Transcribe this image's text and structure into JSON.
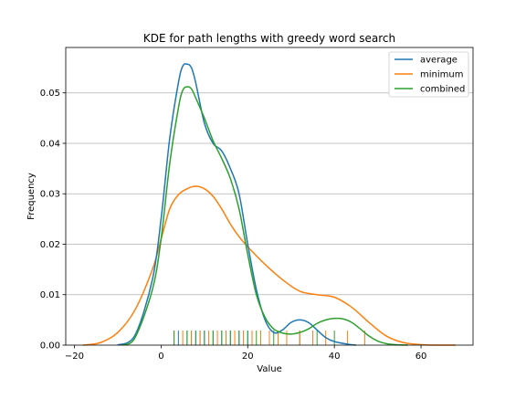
{
  "chart_data": {
    "type": "line",
    "title": "KDE for path lengths with greedy word search",
    "xlabel": "Value",
    "ylabel": "Frequency",
    "xlim": [
      -22,
      72
    ],
    "ylim": [
      0,
      0.059
    ],
    "xticks": [
      -20,
      0,
      20,
      40,
      60
    ],
    "yticks": [
      0.0,
      0.01,
      0.02,
      0.03,
      0.04,
      0.05
    ],
    "ytick_labels": [
      "0.00",
      "0.01",
      "0.02",
      "0.03",
      "0.04",
      "0.05"
    ],
    "grid": "horizontal",
    "legend_position": "top-right",
    "series": [
      {
        "name": "average",
        "color": "#1f77b4",
        "x": [
          -10,
          -6,
          -2,
          0,
          2,
          4,
          5,
          6,
          7,
          8,
          10,
          12,
          14,
          16,
          18,
          20,
          22,
          24,
          26,
          28,
          30,
          32,
          34,
          36,
          38,
          40,
          43,
          45
        ],
        "y": [
          0.0,
          0.002,
          0.013,
          0.025,
          0.041,
          0.052,
          0.0553,
          0.0557,
          0.055,
          0.052,
          0.044,
          0.04,
          0.0385,
          0.035,
          0.03,
          0.02,
          0.011,
          0.005,
          0.0025,
          0.003,
          0.0045,
          0.005,
          0.0045,
          0.003,
          0.0015,
          0.0007,
          0.0002,
          0.0
        ]
      },
      {
        "name": "minimum",
        "color": "#ff7f0e",
        "x": [
          -18,
          -14,
          -10,
          -6,
          -2,
          0,
          2,
          4,
          6,
          8,
          10,
          12,
          14,
          16,
          18,
          20,
          24,
          28,
          32,
          36,
          40,
          44,
          48,
          52,
          56,
          60,
          64,
          68
        ],
        "y": [
          0.0,
          0.0005,
          0.0025,
          0.007,
          0.015,
          0.021,
          0.027,
          0.0298,
          0.031,
          0.0315,
          0.031,
          0.0295,
          0.027,
          0.024,
          0.0215,
          0.0195,
          0.016,
          0.013,
          0.0107,
          0.01,
          0.0095,
          0.0075,
          0.0045,
          0.0018,
          0.0005,
          0.0001,
          0.0,
          0.0
        ]
      },
      {
        "name": "combined",
        "color": "#2ca02c",
        "x": [
          -9,
          -6,
          -2,
          0,
          2,
          4,
          5,
          6,
          7,
          8,
          10,
          12,
          14,
          16,
          18,
          20,
          22,
          24,
          26,
          28,
          30,
          32,
          34,
          36,
          38,
          40,
          42,
          44,
          46,
          48,
          50,
          52,
          54,
          57
        ],
        "y": [
          0.0,
          0.0015,
          0.011,
          0.021,
          0.036,
          0.047,
          0.0505,
          0.0512,
          0.0508,
          0.049,
          0.045,
          0.0405,
          0.037,
          0.033,
          0.027,
          0.018,
          0.01,
          0.0055,
          0.0032,
          0.0024,
          0.0022,
          0.0025,
          0.0032,
          0.0043,
          0.005,
          0.0053,
          0.0052,
          0.0045,
          0.0032,
          0.0018,
          0.0008,
          0.0003,
          0.0001,
          0.0
        ]
      }
    ],
    "rugs": [
      {
        "name": "average",
        "color": "#1f77b4",
        "values": [
          4,
          6,
          7,
          8,
          9,
          10,
          12,
          14,
          15,
          16,
          18,
          20,
          32
        ]
      },
      {
        "name": "minimum",
        "color": "#ff7f0e",
        "values": [
          3,
          5,
          7,
          9,
          11,
          13,
          15,
          17,
          19,
          21,
          23,
          25,
          27,
          29,
          32,
          35,
          38,
          43,
          47
        ]
      },
      {
        "name": "combined",
        "color": "#2ca02c",
        "values": [
          3,
          6,
          8,
          10,
          12,
          14,
          16,
          18,
          20,
          22,
          26,
          36,
          40
        ]
      }
    ]
  }
}
